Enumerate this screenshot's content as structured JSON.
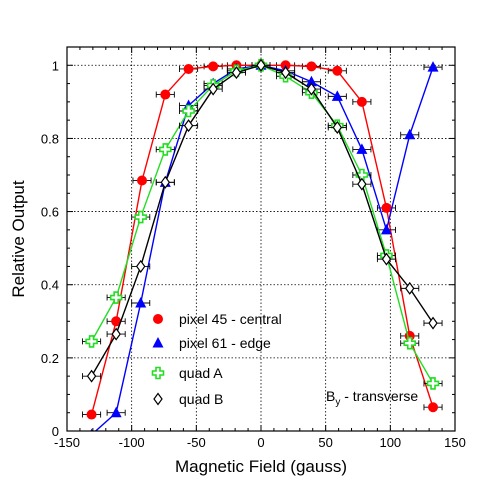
{
  "chart_data": {
    "type": "line",
    "xlabel": "Magnetic Field (gauss)",
    "ylabel": "Relative Output",
    "xlim": [
      -150,
      150
    ],
    "ylim": [
      0,
      1.05
    ],
    "x_ticks": [
      -150,
      -100,
      -50,
      0,
      50,
      100,
      150
    ],
    "y_ticks": [
      0,
      0.2,
      0.4,
      0.6,
      0.8,
      1
    ],
    "x_tick_labels": [
      "-150",
      "-100",
      "-50",
      "0",
      "50",
      "100",
      "150"
    ],
    "y_tick_labels": [
      "0",
      "0.2",
      "0.4",
      "0.6",
      "0.8",
      "1"
    ],
    "grid": true,
    "legend_position": "lower-left",
    "annotation": {
      "main": "B",
      "sub": "y",
      "rest": " - transverse"
    },
    "series": [
      {
        "name": "pixel 45 - central",
        "color": "#ff0000",
        "marker": "circle",
        "x": [
          -131,
          -112,
          -92,
          -74,
          -56,
          -37,
          -19,
          0,
          19,
          39,
          59,
          78,
          97,
          115,
          133
        ],
        "y": [
          0.045,
          0.3,
          0.685,
          0.92,
          0.99,
          0.997,
          1.0,
          1.0,
          1.0,
          0.997,
          0.985,
          0.9,
          0.61,
          0.26,
          0.065
        ],
        "xerr": 7
      },
      {
        "name": "pixel 61 - edge",
        "color": "#0000ff",
        "marker": "triangle",
        "x": [
          -131,
          -112,
          -93,
          -74,
          -56,
          -37,
          -19,
          0,
          19,
          39,
          59,
          78,
          97,
          115,
          133
        ],
        "y": [
          -0.01,
          0.05,
          0.35,
          0.68,
          0.89,
          0.95,
          0.99,
          1.0,
          0.985,
          0.955,
          0.915,
          0.77,
          0.55,
          0.81,
          0.995
        ],
        "xerr": 7
      },
      {
        "name": "quad A",
        "color": "#22dd22",
        "marker": "cross",
        "x": [
          -131,
          -112,
          -93,
          -74,
          -56,
          -37,
          -19,
          0,
          19,
          39,
          59,
          78,
          97,
          115,
          133
        ],
        "y": [
          0.245,
          0.365,
          0.585,
          0.77,
          0.875,
          0.945,
          0.985,
          1.0,
          0.97,
          0.925,
          0.835,
          0.7,
          0.48,
          0.24,
          0.13
        ],
        "xerr": 7
      },
      {
        "name": "quad B",
        "color": "#000000",
        "marker": "diamond",
        "x": [
          -131,
          -112,
          -93,
          -74,
          -56,
          -37,
          -19,
          0,
          19,
          39,
          59,
          78,
          97,
          115,
          133
        ],
        "y": [
          0.15,
          0.265,
          0.45,
          0.68,
          0.835,
          0.935,
          0.98,
          1.0,
          0.98,
          0.935,
          0.83,
          0.675,
          0.47,
          0.39,
          0.295
        ],
        "xerr": 7
      }
    ]
  }
}
